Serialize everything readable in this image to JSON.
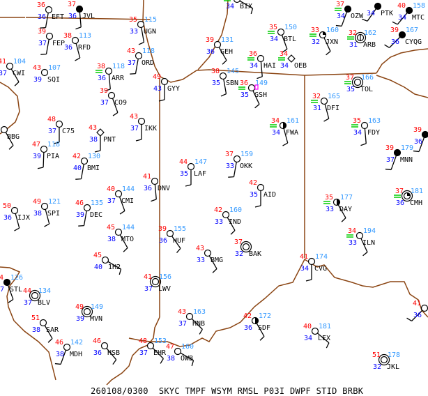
{
  "footer": {
    "valid_time": "260108/0300",
    "parameters": "SKYC TMPF WSYM RMSL P03I DWPF STID BRBK"
  },
  "colors": {
    "temperature": "#ff0000",
    "dewpoint": "#0000ff",
    "pressure": "#3399ff",
    "station_id": "#000000",
    "weather_symbol": "#00cc00",
    "borders": "#8b4513"
  },
  "stations": [
    {
      "id": "EFT",
      "tmpf": "36",
      "dwpf": "36",
      "rmsl": "",
      "sky": "clear",
      "wdir": 190
    },
    {
      "id": "JVL",
      "tmpf": "37",
      "dwpf": "36",
      "rmsl": "",
      "sky": "ovc",
      "wdir": 175
    },
    {
      "id": "FEP",
      "tmpf": "39",
      "dwpf": "37",
      "rmsl": "",
      "sky": "clear",
      "wdir": 190
    },
    {
      "id": "RFD",
      "tmpf": "38",
      "dwpf": "36",
      "rmsl": "113",
      "sky": "clear",
      "wdir": 165
    },
    {
      "id": "UGN",
      "tmpf": "35",
      "dwpf": "33",
      "rmsl": "115",
      "sky": "clear",
      "wdir": 170
    },
    {
      "id": "CWI",
      "tmpf": "41",
      "dwpf": "37",
      "rmsl": "104",
      "sky": "clear",
      "wdir": 150
    },
    {
      "id": "SQI",
      "tmpf": "43",
      "dwpf": "39",
      "rmsl": "107",
      "sky": "clear"
    },
    {
      "id": "ORD",
      "tmpf": "43",
      "dwpf": "37",
      "rmsl": "118",
      "sky": "clear",
      "wdir": 190
    },
    {
      "id": "ARR",
      "tmpf": "38",
      "dwpf": "36",
      "rmsl": "118",
      "sky": "clear",
      "wx": "fog",
      "wdir": 175
    },
    {
      "id": "CO9",
      "tmpf": "39",
      "dwpf": "37",
      "rmsl": "",
      "sky": "clear",
      "wdir": 160
    },
    {
      "id": "GYY",
      "tmpf": "49",
      "dwpf": "43",
      "rmsl": "",
      "sky": "clear",
      "wdir": 180
    },
    {
      "id": "BBG",
      "tmpf": "",
      "dwpf": "",
      "rmsl": "",
      "sky": "clear",
      "wdir": 150
    },
    {
      "id": "C75",
      "tmpf": "48",
      "dwpf": "37",
      "rmsl": "",
      "sky": "clear",
      "wdir": 180
    },
    {
      "id": "PNT",
      "tmpf": "43",
      "dwpf": "38",
      "rmsl": "",
      "sky": "diamond",
      "wdir": 180
    },
    {
      "id": "IKK",
      "tmpf": "43",
      "dwpf": "37",
      "rmsl": "",
      "sky": "clear",
      "wdir": 180
    },
    {
      "id": "PIA",
      "tmpf": "47",
      "dwpf": "39",
      "rmsl": "118",
      "sky": "clear",
      "wdir": 182
    },
    {
      "id": "BMI",
      "tmpf": "42",
      "dwpf": "40",
      "rmsl": "130",
      "sky": "clear",
      "wdir": 190
    },
    {
      "id": "DNV",
      "tmpf": "41",
      "dwpf": "36",
      "rmsl": "",
      "sky": "clear",
      "wdir": 175
    },
    {
      "id": "LAF",
      "tmpf": "44",
      "dwpf": "35",
      "rmsl": "147",
      "sky": "clear",
      "wdir": 180
    },
    {
      "id": "CMI",
      "tmpf": "40",
      "dwpf": "37",
      "rmsl": "144",
      "sky": "clear",
      "wdir": 160
    },
    {
      "id": "IJX",
      "tmpf": "50",
      "dwpf": "36",
      "rmsl": "",
      "sky": "clear",
      "wdir": 165
    },
    {
      "id": "SPI",
      "tmpf": "49",
      "dwpf": "38",
      "rmsl": "121",
      "sky": "clear",
      "wdir": 165
    },
    {
      "id": "DEC",
      "tmpf": "46",
      "dwpf": "39",
      "rmsl": "135",
      "sky": "clear",
      "wdir": 190
    },
    {
      "id": "MTO",
      "tmpf": "45",
      "dwpf": "38",
      "rmsl": "144",
      "sky": "clear",
      "wdir": 150
    },
    {
      "id": "HUF",
      "tmpf": "39",
      "dwpf": "36",
      "rmsl": "155",
      "sky": "clear",
      "wdir": 145
    },
    {
      "id": "1H2",
      "tmpf": "45",
      "dwpf": "40",
      "rmsl": "",
      "sky": "clear",
      "wdir": 120
    },
    {
      "id": "STL",
      "tmpf": "4",
      "dwpf": "7",
      "rmsl": "126",
      "sky": "ovc",
      "wdir": 160
    },
    {
      "id": "BLV",
      "tmpf": "44",
      "dwpf": "37",
      "rmsl": "134",
      "sky": "calm"
    },
    {
      "id": "LWV",
      "tmpf": "41",
      "dwpf": "37",
      "rmsl": "156",
      "sky": "calm"
    },
    {
      "id": "MVN",
      "tmpf": "49",
      "dwpf": "39",
      "rmsl": "149",
      "sky": "calm"
    },
    {
      "id": "SAR",
      "tmpf": "51",
      "dwpf": "38",
      "rmsl": "",
      "sky": "clear",
      "wdir": 150
    },
    {
      "id": "HNB",
      "tmpf": "43",
      "dwpf": "37",
      "rmsl": "163",
      "sky": "clear",
      "wdir": 135
    },
    {
      "id": "MDH",
      "tmpf": "46",
      "dwpf": "38",
      "rmsl": "142",
      "sky": "clear",
      "wdir": 200
    },
    {
      "id": "HSB",
      "tmpf": "46",
      "dwpf": "36",
      "rmsl": "",
      "sky": "clear",
      "wdir": 140
    },
    {
      "id": "EHR",
      "tmpf": "48",
      "dwpf": "37",
      "rmsl": "153",
      "sky": "clear",
      "wdir": 135
    },
    {
      "id": "OWB",
      "tmpf": "47",
      "dwpf": "38",
      "rmsl": "160",
      "sky": "clear",
      "wdir": 120
    },
    {
      "id": "BIX",
      "tmpf": "",
      "dwpf": "34",
      "rmsl": "",
      "sky": "clear",
      "wx": "fog",
      "wdir": 120
    },
    {
      "id": "GEH",
      "tmpf": "39",
      "dwpf": "36",
      "rmsl": "131",
      "sky": "clear",
      "wdir": 150
    },
    {
      "id": "BTL",
      "tmpf": "35",
      "dwpf": "34",
      "rmsl": "150",
      "sky": "clear",
      "wx": "fog",
      "wdir": 160
    },
    {
      "id": "JXN",
      "tmpf": "33",
      "dwpf": "32",
      "rmsl": "160",
      "sky": "few",
      "wx": "fog",
      "wdir": 155
    },
    {
      "id": "OZW",
      "tmpf": "37",
      "dwpf": "34",
      "rmsl": "",
      "sky": "ovc",
      "wx": "fog",
      "wdir": 200
    },
    {
      "id": "PTK",
      "tmpf": "",
      "dwpf": "34",
      "rmsl": "",
      "sky": "ovc",
      "wdir": 215
    },
    {
      "id": "MTC",
      "tmpf": "40",
      "dwpf": "34",
      "rmsl": "158",
      "sky": "ovc",
      "wdir": 220
    },
    {
      "id": "ARB",
      "tmpf": "32",
      "dwpf": "31",
      "rmsl": "162",
      "sky": "calm-missing",
      "wx": "fog"
    },
    {
      "id": "CYQG",
      "tmpf": "39",
      "dwpf": "36",
      "rmsl": "167",
      "sky": "ovc",
      "wdir": 225
    },
    {
      "id": "HAI",
      "tmpf": "36",
      "dwpf": "34",
      "rmsl": "",
      "sky": "clear",
      "wx": "fog",
      "wdir": 175
    },
    {
      "id": "OEB",
      "tmpf": "34",
      "dwpf": "34",
      "rmsl": "",
      "sky": "diamond",
      "wx": "fog"
    },
    {
      "id": "SBN",
      "tmpf": "38",
      "dwpf": "35",
      "rmsl": "145",
      "sky": "clear",
      "wdir": 170
    },
    {
      "id": "GSH",
      "tmpf": "36",
      "dwpf": "35",
      "rmsl": "149",
      "sky": "clear",
      "wx": "fog",
      "p03i": "box",
      "wdir": 155
    },
    {
      "id": "TOL",
      "tmpf": "37",
      "dwpf": "35",
      "rmsl": "166",
      "sky": "calm",
      "wx": "fog"
    },
    {
      "id": "DFI",
      "tmpf": "32",
      "dwpf": "31",
      "rmsl": "165",
      "sky": "clear",
      "wx": "fog",
      "wdir": 165
    },
    {
      "id": "FWA",
      "tmpf": "34",
      "dwpf": "34",
      "rmsl": "161",
      "sky": "sct",
      "wx": "fog",
      "wdir": 165
    },
    {
      "id": "FDY",
      "tmpf": "35",
      "dwpf": "34",
      "rmsl": "163",
      "sky": "clear",
      "wx": "fog",
      "wdir": 175
    },
    {
      "id": "",
      "tmpf": "39",
      "dwpf": "36",
      "rmsl": "",
      "sky": "ovc",
      "wdir": 200
    },
    {
      "id": "MNN",
      "tmpf": "39",
      "dwpf": "37",
      "rmsl": "179",
      "sky": "ovc",
      "wdir": 200
    },
    {
      "id": "OKK",
      "tmpf": "37",
      "dwpf": "33",
      "rmsl": "159",
      "sky": "clear",
      "wdir": 190
    },
    {
      "id": "AID",
      "tmpf": "42",
      "dwpf": "35",
      "rmsl": "",
      "sky": "clear",
      "wdir": 180
    },
    {
      "id": "DAY",
      "tmpf": "35",
      "dwpf": "33",
      "rmsl": "177",
      "sky": "sct",
      "wx": "fog",
      "wdir": 150
    },
    {
      "id": "CMH",
      "tmpf": "37",
      "dwpf": "36",
      "rmsl": "181",
      "sky": "calm-few",
      "wx": "fog"
    },
    {
      "id": "IND",
      "tmpf": "42",
      "dwpf": "33",
      "rmsl": "160",
      "sky": "clear",
      "wdir": 150
    },
    {
      "id": "ILN",
      "tmpf": "34",
      "dwpf": "33",
      "rmsl": "194",
      "sky": "clear",
      "wx": "fog",
      "wdir": 155
    },
    {
      "id": "BAK",
      "tmpf": "37",
      "dwpf": "32",
      "rmsl": "",
      "sky": "calm"
    },
    {
      "id": "BMG",
      "tmpf": "43",
      "dwpf": "33",
      "rmsl": "",
      "sky": "clear",
      "wdir": 150
    },
    {
      "id": "CVG",
      "tmpf": "41",
      "dwpf": "34",
      "rmsl": "174",
      "sky": "clear",
      "wdir": 180
    },
    {
      "id": "SDF",
      "tmpf": "42",
      "dwpf": "36",
      "rmsl": "172",
      "sky": "sct",
      "wdir": 150
    },
    {
      "id": "LEX",
      "tmpf": "40",
      "dwpf": "34",
      "rmsl": "181",
      "sky": "clear",
      "wdir": 130
    },
    {
      "id": "JKL",
      "tmpf": "51",
      "dwpf": "32",
      "rmsl": "178",
      "sky": "calm"
    },
    {
      "id": "",
      "tmpf": "41",
      "dwpf": "36",
      "rmsl": "",
      "sky": "clear",
      "wdir": 225
    }
  ]
}
